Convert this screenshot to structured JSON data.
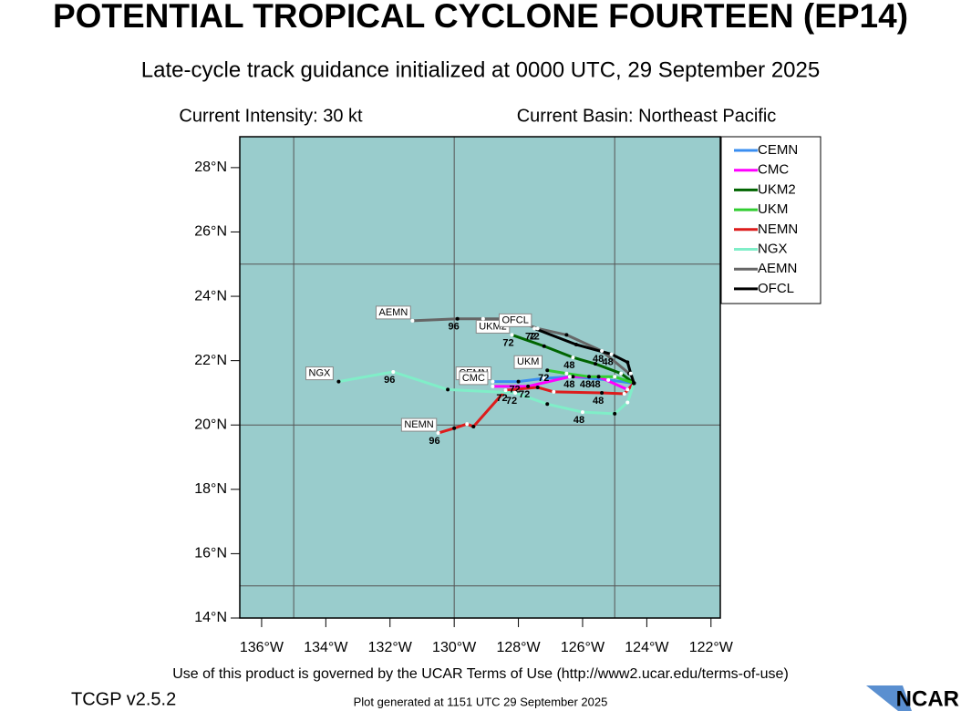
{
  "chart_data": {
    "type": "track-map",
    "title": "POTENTIAL TROPICAL CYCLONE FOURTEEN (EP14)",
    "subtitle": "Late-cycle track guidance initialized at 0000 UTC, 29 September 2025",
    "intensity_label": "Current Intensity: 30 kt",
    "basin_label": "Current Basin: Northeast Pacific",
    "xlim": [
      -136.68,
      -121.71
    ],
    "ylim": [
      14,
      28.96
    ],
    "xticks": [
      {
        "value": -136,
        "label": "136°W"
      },
      {
        "value": -134,
        "label": "134°W"
      },
      {
        "value": -132,
        "label": "132°W"
      },
      {
        "value": -130,
        "label": "130°W"
      },
      {
        "value": -128,
        "label": "128°W"
      },
      {
        "value": -126,
        "label": "126°W"
      },
      {
        "value": -124,
        "label": "124°W"
      },
      {
        "value": -122,
        "label": "122°W"
      }
    ],
    "yticks": [
      {
        "value": 14,
        "label": "14°N"
      },
      {
        "value": 16,
        "label": "16°N"
      },
      {
        "value": 18,
        "label": "18°N"
      },
      {
        "value": 20,
        "label": "20°N"
      },
      {
        "value": 22,
        "label": "22°N"
      },
      {
        "value": 24,
        "label": "24°N"
      },
      {
        "value": 26,
        "label": "26°N"
      },
      {
        "value": 28,
        "label": "28°N"
      }
    ],
    "grid_x": [
      -135,
      -130,
      -125
    ],
    "grid_y": [
      15,
      20,
      25
    ],
    "background": "#99cccc",
    "legend": "upper-right-outside",
    "series": [
      {
        "name": "CEMN",
        "color": "#3a8ef0",
        "x": [
          -124.4,
          -125.2,
          -126.3,
          -127.2,
          -128.0,
          -128.8
        ],
        "y": [
          21.3,
          21.4,
          21.5,
          21.45,
          21.35,
          21.35
        ],
        "point_labels": [
          null,
          null,
          "48",
          null,
          "72",
          null
        ]
      },
      {
        "name": "CMC",
        "color": "#ff00ff",
        "x": [
          -124.4,
          -124.6,
          -125.5,
          -126.4,
          -127.7,
          -128.8
        ],
        "y": [
          21.3,
          21.1,
          21.5,
          21.5,
          21.2,
          21.2
        ],
        "point_labels": [
          null,
          null,
          "48",
          null,
          "72",
          null
        ]
      },
      {
        "name": "UKM2",
        "color": "#006400",
        "x": [
          -124.4,
          -124.8,
          -125.6,
          -126.3,
          -127.2,
          -128.2
        ],
        "y": [
          21.3,
          21.6,
          21.9,
          22.1,
          22.45,
          22.8
        ],
        "point_labels": [
          null,
          null,
          null,
          "48",
          null,
          "72"
        ]
      },
      {
        "name": "UKM",
        "color": "#32cd32",
        "x": [
          -124.4,
          -125.0,
          -125.8,
          -126.5,
          -127.1
        ],
        "y": [
          21.3,
          21.5,
          21.5,
          21.6,
          21.7
        ],
        "point_labels": [
          null,
          null,
          "48",
          null,
          "72"
        ]
      },
      {
        "name": "NEMN",
        "color": "#dd1c1c",
        "x": [
          -124.4,
          -124.7,
          -125.4,
          -126.9,
          -127.4,
          -128.4,
          -129.4,
          -129.6,
          -130.0,
          -130.5
        ],
        "y": [
          21.3,
          20.97,
          21.0,
          21.03,
          21.17,
          21.08,
          19.95,
          20.03,
          19.9,
          19.75
        ],
        "point_labels": [
          null,
          null,
          "48",
          null,
          null,
          "72",
          null,
          null,
          null,
          "96"
        ]
      },
      {
        "name": "NGX",
        "color": "#80eec8",
        "x": [
          -124.4,
          -124.6,
          -125.0,
          -126.0,
          -127.1,
          -128.1,
          -130.2,
          -131.9,
          -133.6
        ],
        "y": [
          21.3,
          20.7,
          20.35,
          20.4,
          20.65,
          21.0,
          21.1,
          21.65,
          21.35
        ],
        "point_labels": [
          null,
          null,
          null,
          "48",
          null,
          "72",
          null,
          "96",
          null
        ]
      },
      {
        "name": "AEMN",
        "color": "#666666",
        "x": [
          -124.55,
          -125.4,
          -126.5,
          -127.4,
          -128.3,
          -129.1,
          -129.9,
          -131.3
        ],
        "y": [
          21.6,
          22.3,
          22.8,
          23.0,
          23.3,
          23.3,
          23.3,
          23.24
        ],
        "point_labels": [
          null,
          "48",
          null,
          "72",
          null,
          null,
          "96",
          null
        ]
      },
      {
        "name": "OFCL",
        "color": "#000000",
        "x": [
          -124.4,
          -124.5,
          -124.6,
          -125.1,
          -126.2,
          -127.5
        ],
        "y": [
          21.3,
          21.6,
          21.95,
          22.2,
          22.5,
          23.0
        ],
        "point_labels": [
          null,
          null,
          null,
          "48",
          null,
          "72"
        ]
      }
    ],
    "terms": "Use of this product is governed by the UCAR Terms of Use (http://www2.ucar.edu/terms-of-use)",
    "version": "TCGP v2.5.2",
    "generated": "Plot generated at 1151 UTC  29 September 2025",
    "logo": "NCAR"
  }
}
